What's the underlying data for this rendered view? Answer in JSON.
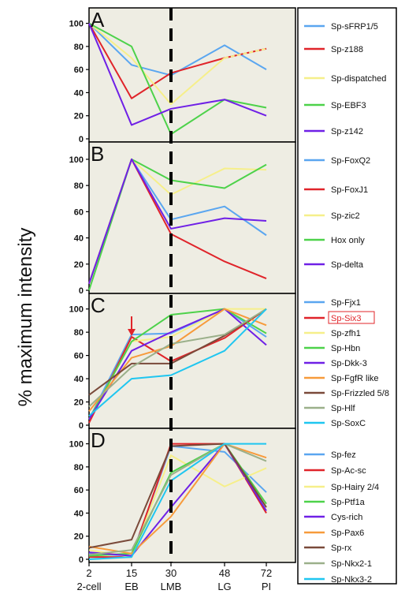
{
  "figure": {
    "ylabel": "% maximum intensity",
    "xticks": [
      {
        "top": "2",
        "bottom": "2-cell"
      },
      {
        "top": "15",
        "bottom": "EB"
      },
      {
        "top": "30",
        "bottom": "LMB"
      },
      {
        "top": "48",
        "bottom": "LG"
      },
      {
        "top": "72",
        "bottom": "PI"
      }
    ]
  },
  "colors": {
    "plot_bg": "#eeede3",
    "blue": "#5aa6f0",
    "red": "#e0242a",
    "yellow": "#f6ef8a",
    "green": "#4dd24a",
    "purple": "#6f20e6",
    "orange": "#f79b3b",
    "brown": "#7a4a3a",
    "olive": "#9bb08a",
    "cyan": "#1fc6f0"
  },
  "chart_data": [
    {
      "type": "line",
      "panel_label": "A",
      "x": [
        2,
        15,
        30,
        48,
        72
      ],
      "yticks": [
        "100",
        "80",
        "60",
        "40",
        "20",
        "0"
      ],
      "ylim": [
        0,
        112
      ],
      "series": [
        {
          "name": "Sp-sFRP1/5",
          "color": "#5aa6f0",
          "values": [
            100,
            64,
            55,
            81,
            60
          ]
        },
        {
          "name": "Sp-z188",
          "color": "#e0242a",
          "values": [
            100,
            35,
            57,
            70,
            78
          ]
        },
        {
          "name": "Sp-dispatched",
          "color": "#f6ef8a",
          "dashed_from": 3,
          "values": [
            100,
            70,
            30,
            70,
            78
          ]
        },
        {
          "name": "Sp-EBF3",
          "color": "#4dd24a",
          "values": [
            100,
            80,
            4,
            34,
            27
          ]
        },
        {
          "name": "Sp-z142",
          "color": "#6f20e6",
          "values": [
            100,
            12,
            26,
            34,
            20
          ]
        }
      ]
    },
    {
      "type": "line",
      "panel_label": "B",
      "x": [
        2,
        15,
        30,
        48,
        72
      ],
      "yticks": [
        "100",
        "80",
        "60",
        "40",
        "20",
        "0"
      ],
      "ylim": [
        0,
        112
      ],
      "series": [
        {
          "name": "Sp-FoxQ2",
          "color": "#5aa6f0",
          "values": [
            5,
            100,
            54,
            64,
            42
          ]
        },
        {
          "name": "Sp-FoxJ1",
          "color": "#e0242a",
          "values": [
            5,
            100,
            43,
            22,
            9
          ]
        },
        {
          "name": "Sp-zic2",
          "color": "#f6ef8a",
          "values": [
            5,
            100,
            73,
            93,
            92
          ]
        },
        {
          "name": "Hox only",
          "color": "#4dd24a",
          "values": [
            0,
            100,
            84,
            78,
            96
          ]
        },
        {
          "name": "Sp-delta",
          "color": "#6f20e6",
          "values": [
            5,
            100,
            47,
            55,
            53
          ]
        }
      ]
    },
    {
      "type": "line",
      "panel_label": "C",
      "x": [
        2,
        15,
        30,
        48,
        72
      ],
      "yticks": [
        "100",
        "80",
        "60",
        "40",
        "20",
        "0"
      ],
      "ylim": [
        0,
        112
      ],
      "annotation": {
        "type": "arrow",
        "x": 15,
        "y": 76
      },
      "series": [
        {
          "name": "Sp-Fjx1",
          "color": "#5aa6f0",
          "values": [
            5,
            78,
            79,
            100,
            76
          ]
        },
        {
          "name": "Sp-Six3",
          "color": "#e0242a",
          "highlight": true,
          "values": [
            2,
            76,
            55,
            75,
            100
          ]
        },
        {
          "name": "Sp-zfh1",
          "color": "#f6ef8a",
          "values": [
            5,
            72,
            76,
            100,
            100
          ]
        },
        {
          "name": "Sp-Hbn",
          "color": "#4dd24a",
          "values": [
            5,
            72,
            95,
            100,
            79
          ]
        },
        {
          "name": "Sp-Dkk-3",
          "color": "#6f20e6",
          "values": [
            5,
            64,
            80,
            100,
            69
          ]
        },
        {
          "name": "Sp-FgfR like",
          "color": "#f79b3b",
          "values": [
            12,
            58,
            68,
            100,
            86
          ]
        },
        {
          "name": "Sp-Frizzled 5/8",
          "color": "#7a4a3a",
          "values": [
            26,
            53,
            53,
            77,
            100
          ]
        },
        {
          "name": "Sp-Hlf",
          "color": "#9bb08a",
          "values": [
            16,
            50,
            70,
            78,
            100
          ]
        },
        {
          "name": "Sp-SoxC",
          "color": "#1fc6f0",
          "values": [
            8,
            40,
            43,
            64,
            100
          ]
        }
      ]
    },
    {
      "type": "line",
      "panel_label": "D",
      "x": [
        2,
        15,
        30,
        48,
        72
      ],
      "yticks": [
        "100",
        "80",
        "60",
        "40",
        "20",
        "0"
      ],
      "ylim": [
        0,
        112
      ],
      "series": [
        {
          "name": "Sp-fez",
          "color": "#5aa6f0",
          "values": [
            5,
            3,
            98,
            93,
            58
          ]
        },
        {
          "name": "Sp-Ac-sc",
          "color": "#e0242a",
          "values": [
            2,
            2,
            100,
            100,
            40
          ]
        },
        {
          "name": "Sp-Hairy 2/4",
          "color": "#f6ef8a",
          "values": [
            8,
            2,
            90,
            63,
            79
          ]
        },
        {
          "name": "Sp-Ptf1a",
          "color": "#4dd24a",
          "values": [
            3,
            5,
            75,
            100,
            48
          ]
        },
        {
          "name": "Cys-rich",
          "color": "#6f20e6",
          "values": [
            6,
            3,
            45,
            100,
            42
          ]
        },
        {
          "name": "Sp-Pax6",
          "color": "#f79b3b",
          "values": [
            11,
            5,
            37,
            100,
            88
          ]
        },
        {
          "name": "Sp-rx",
          "color": "#7a4a3a",
          "values": [
            10,
            17,
            98,
            100,
            45
          ]
        },
        {
          "name": "Sp-Nkx2-1",
          "color": "#9bb08a",
          "values": [
            4,
            8,
            73,
            100,
            85
          ]
        },
        {
          "name": "Sp-Nkx3-2",
          "color": "#1fc6f0",
          "values": [
            0,
            2,
            68,
            100,
            100
          ]
        }
      ]
    }
  ]
}
